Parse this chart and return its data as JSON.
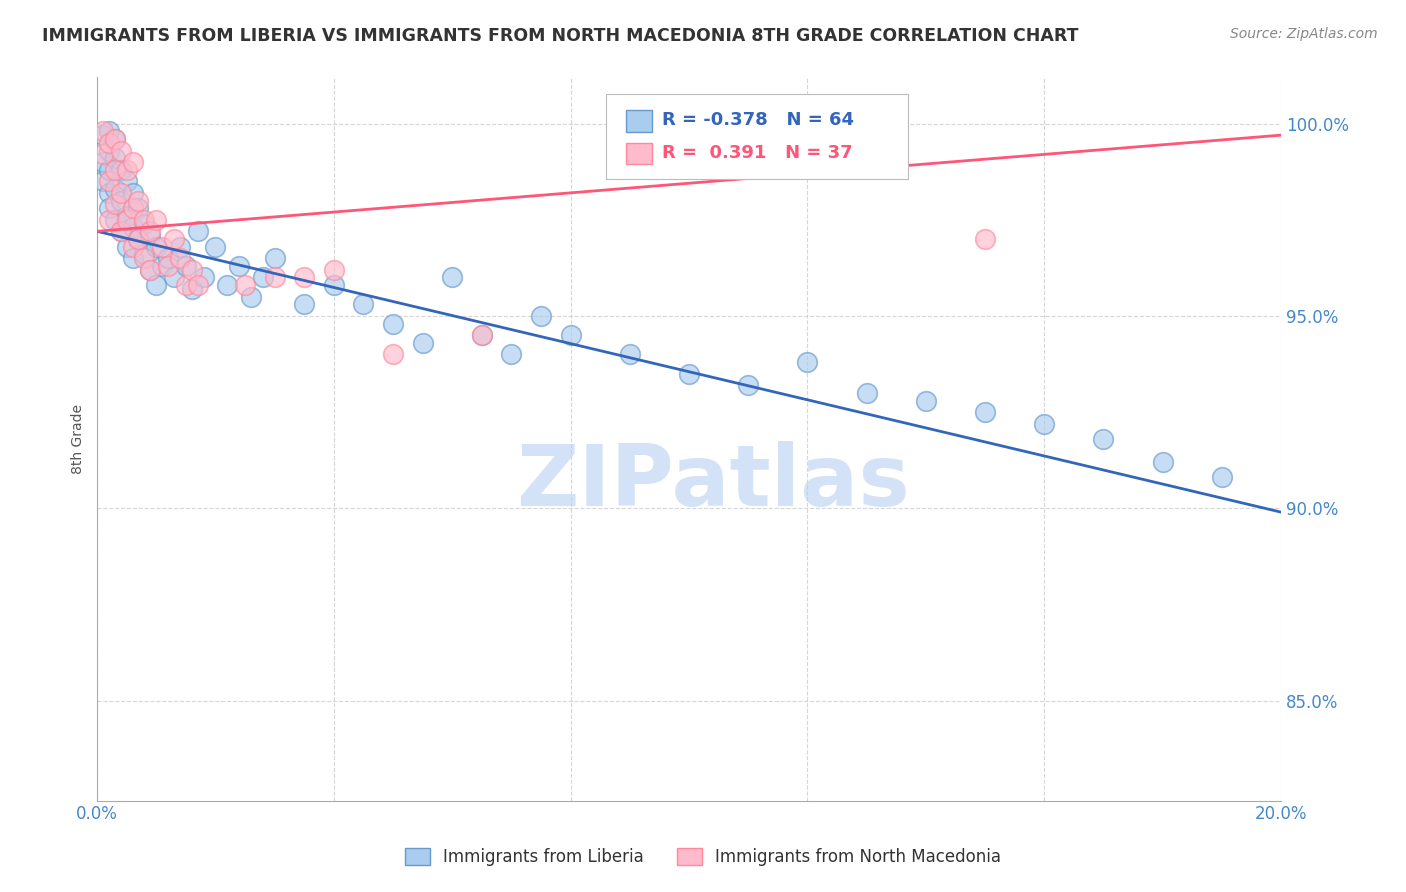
{
  "title": "IMMIGRANTS FROM LIBERIA VS IMMIGRANTS FROM NORTH MACEDONIA 8TH GRADE CORRELATION CHART",
  "source": "Source: ZipAtlas.com",
  "ylabel": "8th Grade",
  "xlim": [
    0.0,
    0.2
  ],
  "ylim": [
    0.824,
    1.012
  ],
  "yticks": [
    0.85,
    0.9,
    0.95,
    1.0
  ],
  "ytick_labels": [
    "85.0%",
    "90.0%",
    "95.0%",
    "100.0%"
  ],
  "xticks": [
    0.0,
    0.04,
    0.08,
    0.12,
    0.16,
    0.2
  ],
  "xtick_labels": [
    "0.0%",
    "",
    "",
    "",
    "",
    "20.0%"
  ],
  "liberia_R": -0.378,
  "liberia_N": 64,
  "macedonia_R": 0.391,
  "macedonia_N": 37,
  "liberia_color": "#6699CC",
  "macedonia_color": "#FF8899",
  "liberia_line_color": "#3366BB",
  "macedonia_line_color": "#FF5577",
  "liberia_x": [
    0.001,
    0.001,
    0.001,
    0.002,
    0.002,
    0.002,
    0.002,
    0.002,
    0.003,
    0.003,
    0.003,
    0.003,
    0.004,
    0.004,
    0.004,
    0.005,
    0.005,
    0.005,
    0.006,
    0.006,
    0.006,
    0.007,
    0.007,
    0.008,
    0.008,
    0.009,
    0.009,
    0.01,
    0.01,
    0.011,
    0.012,
    0.013,
    0.014,
    0.015,
    0.016,
    0.017,
    0.018,
    0.02,
    0.022,
    0.024,
    0.026,
    0.028,
    0.03,
    0.035,
    0.04,
    0.045,
    0.05,
    0.055,
    0.06,
    0.065,
    0.07,
    0.075,
    0.08,
    0.09,
    0.1,
    0.11,
    0.12,
    0.13,
    0.14,
    0.15,
    0.16,
    0.17,
    0.18,
    0.19
  ],
  "liberia_y": [
    0.99,
    0.985,
    0.997,
    0.982,
    0.993,
    0.978,
    0.988,
    0.998,
    0.975,
    0.983,
    0.991,
    0.996,
    0.972,
    0.98,
    0.988,
    0.968,
    0.976,
    0.985,
    0.965,
    0.973,
    0.982,
    0.97,
    0.978,
    0.966,
    0.974,
    0.962,
    0.971,
    0.958,
    0.968,
    0.963,
    0.965,
    0.96,
    0.968,
    0.963,
    0.957,
    0.972,
    0.96,
    0.968,
    0.958,
    0.963,
    0.955,
    0.96,
    0.965,
    0.953,
    0.958,
    0.953,
    0.948,
    0.943,
    0.96,
    0.945,
    0.94,
    0.95,
    0.945,
    0.94,
    0.935,
    0.932,
    0.938,
    0.93,
    0.928,
    0.925,
    0.922,
    0.918,
    0.912,
    0.908
  ],
  "macedonia_x": [
    0.001,
    0.001,
    0.002,
    0.002,
    0.002,
    0.003,
    0.003,
    0.003,
    0.004,
    0.004,
    0.004,
    0.005,
    0.005,
    0.006,
    0.006,
    0.006,
    0.007,
    0.007,
    0.008,
    0.008,
    0.009,
    0.009,
    0.01,
    0.011,
    0.012,
    0.013,
    0.014,
    0.015,
    0.016,
    0.017,
    0.025,
    0.03,
    0.035,
    0.04,
    0.05,
    0.065,
    0.15
  ],
  "macedonia_y": [
    0.992,
    0.998,
    0.985,
    0.995,
    0.975,
    0.988,
    0.979,
    0.996,
    0.972,
    0.982,
    0.993,
    0.975,
    0.988,
    0.968,
    0.978,
    0.99,
    0.97,
    0.98,
    0.965,
    0.975,
    0.962,
    0.972,
    0.975,
    0.968,
    0.963,
    0.97,
    0.965,
    0.958,
    0.962,
    0.958,
    0.958,
    0.96,
    0.96,
    0.962,
    0.94,
    0.945,
    0.97
  ],
  "liberia_line_x": [
    0.0,
    0.2
  ],
  "liberia_line_y": [
    0.972,
    0.899
  ],
  "macedonia_line_x": [
    0.0,
    0.2
  ],
  "macedonia_line_y": [
    0.972,
    0.997
  ],
  "watermark_text": "ZIPatlas",
  "watermark_color": "#CCDDF5",
  "background_color": "#ffffff",
  "grid_color": "#cccccc",
  "title_color": "#333333",
  "axis_color": "#4488CC"
}
